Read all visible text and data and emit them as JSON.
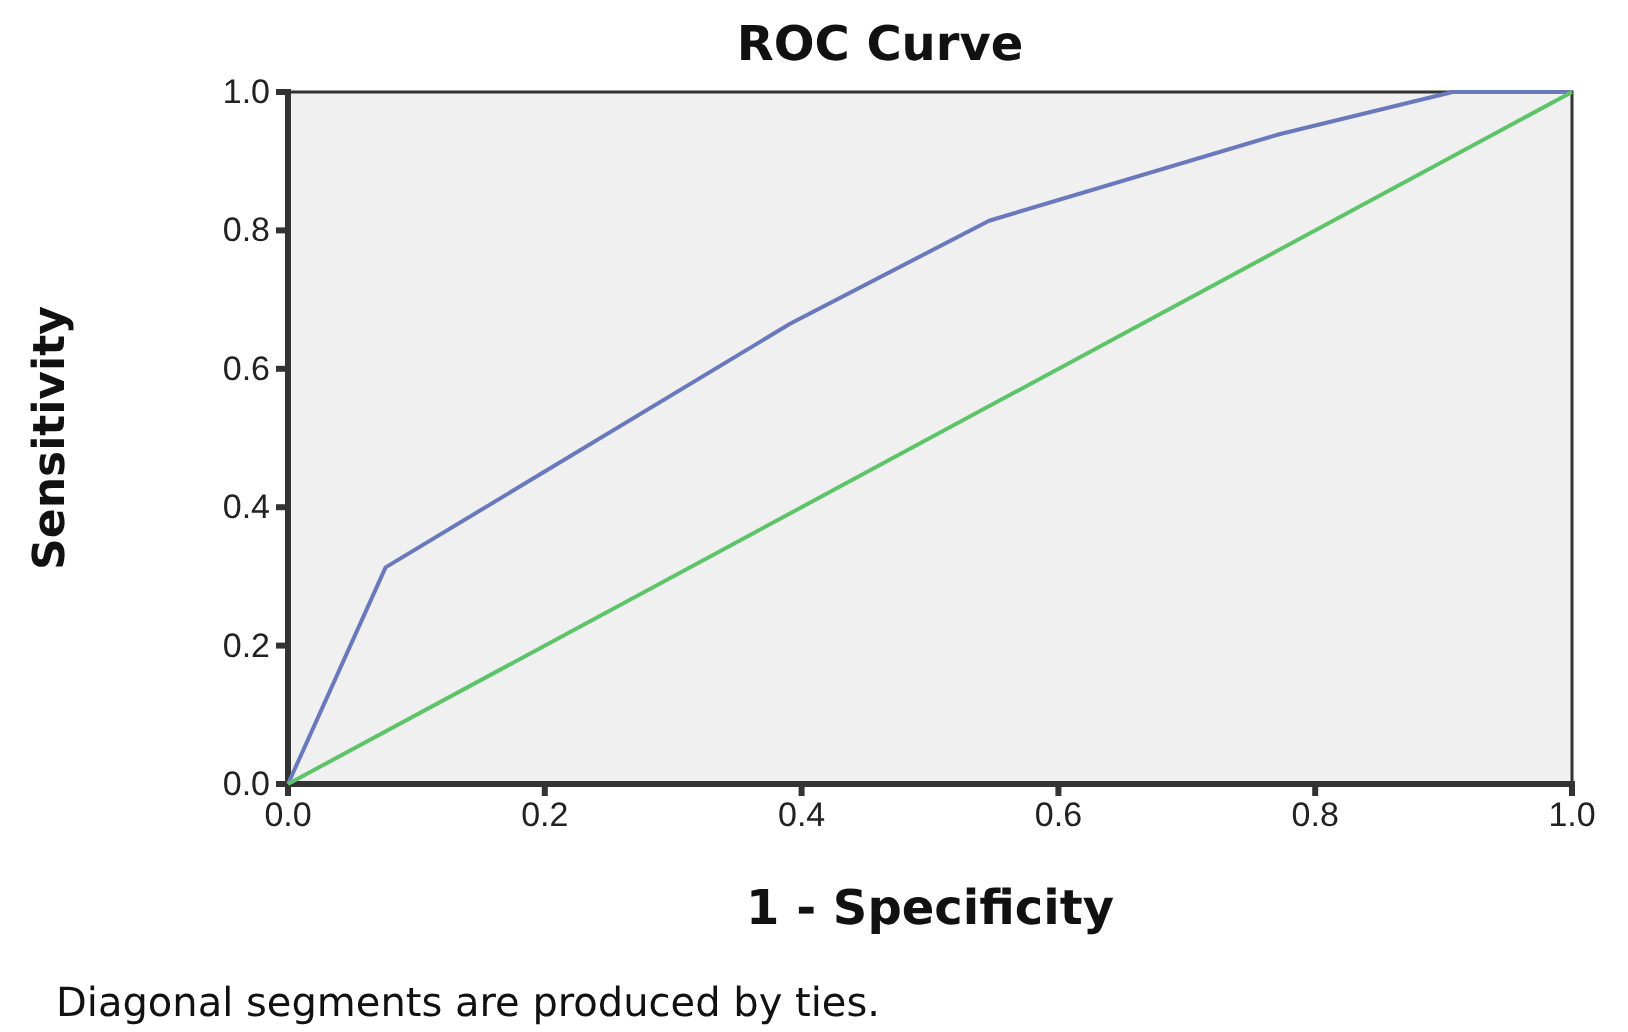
{
  "chart_data": {
    "type": "line",
    "title": "ROC Curve",
    "xlabel": "1 - Specificity",
    "ylabel": "Sensitivity",
    "annotations": [
      "Diagonal segments are produced by ties."
    ],
    "series": [
      {
        "color": "#6a78bc",
        "x": [
          0,
          0.076,
          0.391,
          0.546,
          0.772,
          0.907,
          1
        ],
        "values": [
          0,
          0.313,
          0.665,
          0.814,
          0.939,
          1,
          1
        ]
      },
      {
        "color": "#5ec46a",
        "x": [
          0,
          1
        ],
        "values": [
          0,
          1
        ]
      }
    ],
    "xlim": [
      0,
      1
    ],
    "ylim": [
      0,
      1
    ],
    "xticks": [
      {
        "value": 0,
        "label": "0.0"
      },
      0.2,
      0.4,
      0.6,
      0.8,
      {
        "value": 1,
        "label": "1.0"
      }
    ],
    "yticks": [
      {
        "value": 0,
        "label": "0.0"
      },
      0.2,
      0.4,
      0.6,
      0.8,
      {
        "value": 1,
        "label": "1.0"
      }
    ],
    "grid": false,
    "marker": "none",
    "line_style": "solid"
  }
}
